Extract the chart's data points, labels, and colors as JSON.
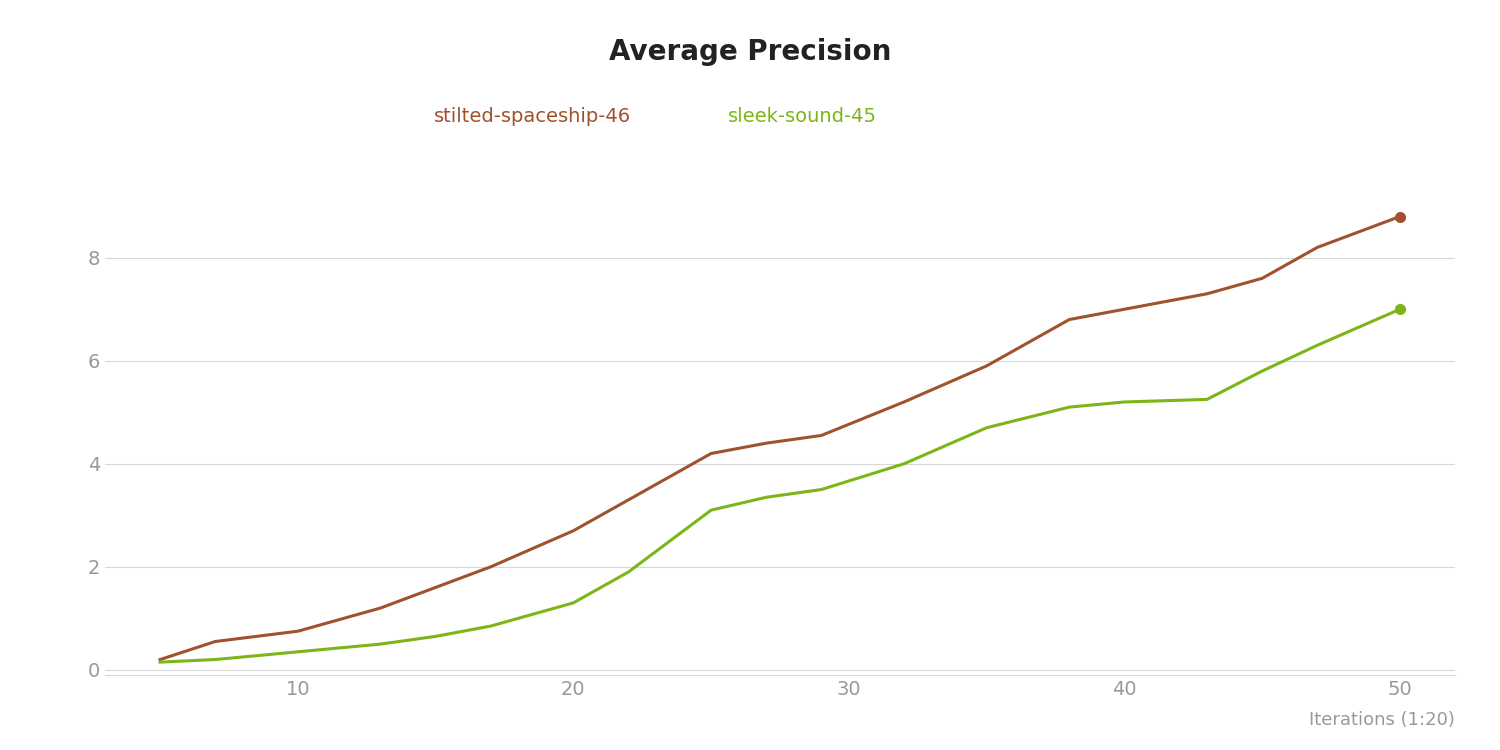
{
  "title": "Average Precision",
  "xlabel": "Iterations (1:20)",
  "series": [
    {
      "label": "stilted-spaceship-46",
      "color": "#A0522D",
      "x": [
        5,
        7,
        10,
        13,
        15,
        17,
        20,
        22,
        25,
        27,
        29,
        32,
        35,
        38,
        40,
        43,
        45,
        47,
        50
      ],
      "y": [
        0.2,
        0.55,
        0.75,
        1.2,
        1.6,
        2.0,
        2.7,
        3.3,
        4.2,
        4.4,
        4.55,
        5.2,
        5.9,
        6.8,
        7.0,
        7.3,
        7.6,
        8.2,
        8.8
      ]
    },
    {
      "label": "sleek-sound-45",
      "color": "#7CB518",
      "x": [
        5,
        7,
        10,
        13,
        15,
        17,
        20,
        22,
        25,
        27,
        29,
        32,
        35,
        38,
        40,
        43,
        45,
        47,
        50
      ],
      "y": [
        0.15,
        0.2,
        0.35,
        0.5,
        0.65,
        0.85,
        1.3,
        1.9,
        3.1,
        3.35,
        3.5,
        4.0,
        4.7,
        5.1,
        5.2,
        5.25,
        5.8,
        6.3,
        7.0
      ]
    }
  ],
  "ylim": [
    -0.1,
    9.8
  ],
  "xlim": [
    3,
    52
  ],
  "yticks": [
    0,
    2,
    4,
    6,
    8
  ],
  "xticks": [
    10,
    20,
    30,
    40,
    50
  ],
  "background_color": "#ffffff",
  "grid_color": "#d8d8d8",
  "title_fontsize": 20,
  "legend_fontsize": 14,
  "tick_fontsize": 14,
  "xlabel_fontsize": 13,
  "marker_size": 7,
  "line_width": 2.2
}
